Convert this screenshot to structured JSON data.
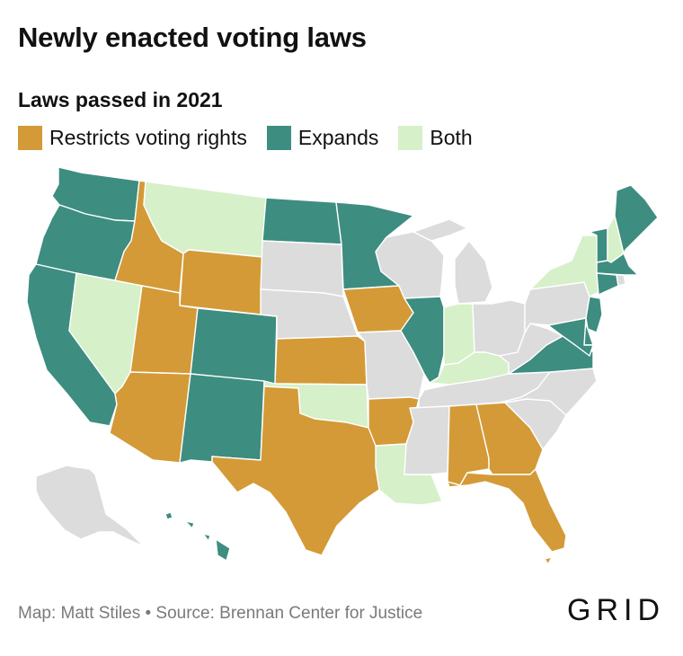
{
  "header": {
    "title": "Newly enacted voting laws",
    "subtitle": "Laws passed in 2021"
  },
  "legend": [
    {
      "key": "restricts",
      "label": "Restricts voting rights",
      "color": "#d39a37"
    },
    {
      "key": "expands",
      "label": "Expands",
      "color": "#3d8d80"
    },
    {
      "key": "both",
      "label": "Both",
      "color": "#d6f0c9"
    }
  ],
  "colors": {
    "none": "#dcdcdc",
    "restricts": "#d39a37",
    "expands": "#3d8d80",
    "both": "#d6f0c9"
  },
  "states": {
    "WA": "expands",
    "OR": "expands",
    "CA": "expands",
    "NV": "both",
    "ID": "restricts",
    "MT": "both",
    "WY": "restricts",
    "UT": "restricts",
    "AZ": "restricts",
    "CO": "expands",
    "NM": "expands",
    "ND": "expands",
    "SD": "none",
    "NE": "none",
    "KS": "restricts",
    "OK": "both",
    "TX": "restricts",
    "MN": "expands",
    "IA": "restricts",
    "MO": "none",
    "AR": "restricts",
    "LA": "both",
    "WI": "none",
    "IL": "expands",
    "MI": "none",
    "IN": "both",
    "OH": "none",
    "KY": "both",
    "TN": "none",
    "MS": "none",
    "AL": "restricts",
    "GA": "restricts",
    "FL": "restricts",
    "SC": "none",
    "NC": "none",
    "VA": "expands",
    "WV": "none",
    "PA": "none",
    "NY": "both",
    "VT": "expands",
    "NH": "both",
    "ME": "expands",
    "MA": "expands",
    "CT": "expands",
    "RI": "none",
    "NJ": "expands",
    "DE": "expands",
    "MD": "expands",
    "AK": "none",
    "HI": "expands"
  },
  "footer": {
    "credit": "Map: Matt Stiles • Source: Brennan Center for Justice",
    "logo": "GRID"
  }
}
